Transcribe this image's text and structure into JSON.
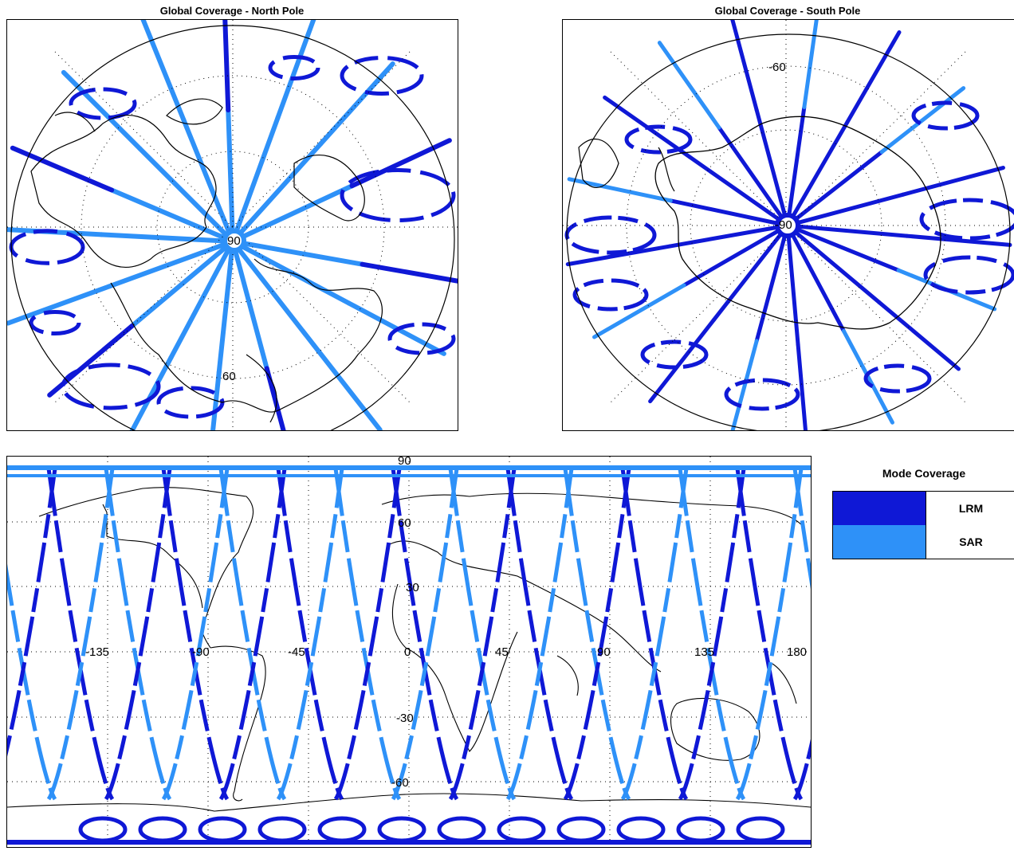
{
  "colors": {
    "lrm": "#0f18d6",
    "sar": "#2e91f8",
    "coast": "#000000",
    "grid": "#000000"
  },
  "north_pole": {
    "title": "Global Coverage - North Pole",
    "labels": {
      "pole": "90",
      "lat60": "60"
    }
  },
  "south_pole": {
    "title": "Global Coverage - South Pole",
    "labels": {
      "pole": "-90",
      "lat60": "-60"
    }
  },
  "world_map": {
    "top_lat_label": "90",
    "lat_labels": [
      "60",
      "30",
      "-30",
      "-60"
    ],
    "lon_labels": [
      "-135",
      "-90",
      "-45",
      "0",
      "45",
      "90",
      "135",
      "180"
    ]
  },
  "legend": {
    "title": "Mode Coverage",
    "items": [
      {
        "label": "LRM",
        "color": "#0f18d6"
      },
      {
        "label": "SAR",
        "color": "#2e91f8"
      }
    ]
  }
}
